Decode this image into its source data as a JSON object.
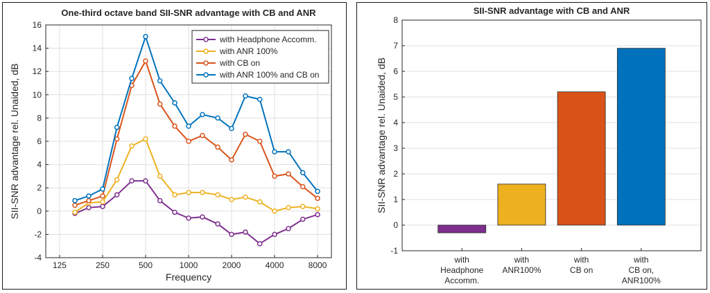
{
  "chart_data": [
    {
      "type": "line",
      "title": "One-third octave band SII-SNR advantage with CB and ANR",
      "xlabel": "Frequency",
      "ylabel": "SII-SNR advantage rel. Unaided, dB",
      "xscale": "log",
      "xlim": [
        100,
        10000
      ],
      "ylim": [
        -4,
        16
      ],
      "xticks": [
        125,
        250,
        500,
        1000,
        2000,
        4000,
        8000
      ],
      "xtick_labels": [
        "125",
        "250",
        "500",
        "1000",
        "2000",
        "4000",
        "8000"
      ],
      "yticks": [
        -4,
        -2,
        0,
        2,
        4,
        6,
        8,
        10,
        12,
        14,
        16
      ],
      "grid": true,
      "legend_position": "top-right",
      "x": [
        160,
        200,
        250,
        315,
        400,
        500,
        630,
        800,
        1000,
        1250,
        1600,
        2000,
        2500,
        3150,
        4000,
        5000,
        6300,
        8000
      ],
      "series": [
        {
          "name": "with Headphone Accomm.",
          "color": "#7e2f8e",
          "values": [
            -0.2,
            0.3,
            0.4,
            1.4,
            2.6,
            2.6,
            0.9,
            -0.1,
            -0.6,
            -0.5,
            -1.1,
            -2.0,
            -1.8,
            -2.8,
            -2.0,
            -1.5,
            -0.7,
            -0.3
          ]
        },
        {
          "name": "with ANR 100%",
          "color": "#edb120",
          "values": [
            -0.1,
            0.7,
            0.8,
            2.7,
            5.6,
            6.2,
            3.0,
            1.4,
            1.6,
            1.6,
            1.4,
            1.0,
            1.2,
            0.8,
            0.0,
            0.3,
            0.4,
            0.2
          ]
        },
        {
          "name": "with CB on",
          "color": "#d95319",
          "values": [
            0.5,
            0.9,
            1.3,
            6.2,
            10.8,
            12.9,
            9.2,
            7.3,
            6.0,
            6.5,
            5.5,
            4.4,
            6.6,
            6.0,
            3.0,
            3.2,
            2.1,
            1.1
          ]
        },
        {
          "name": "with ANR 100% and CB on",
          "color": "#0072bd",
          "values": [
            0.9,
            1.3,
            1.9,
            7.2,
            11.4,
            15.0,
            11.2,
            9.3,
            7.3,
            8.3,
            8.0,
            7.1,
            9.9,
            9.6,
            5.1,
            5.1,
            3.3,
            1.7
          ]
        }
      ]
    },
    {
      "type": "bar",
      "title": "SII-SNR advantage with CB and ANR",
      "xlabel": "",
      "ylabel": "SII-SNR advantage rel. Unaided, dB",
      "ylim": [
        -1,
        8
      ],
      "yticks": [
        -1,
        0,
        1,
        2,
        3,
        4,
        5,
        6,
        7,
        8
      ],
      "grid": true,
      "categories": [
        [
          "with",
          "Headphone",
          "Accomm."
        ],
        [
          "with",
          "ANR100%"
        ],
        [
          "with",
          "CB on"
        ],
        [
          "with",
          "CB on,",
          "ANR100%"
        ]
      ],
      "values": [
        -0.3,
        1.6,
        5.2,
        6.9
      ],
      "colors": [
        "#7e2f8e",
        "#edb120",
        "#d95319",
        "#0072bd"
      ]
    }
  ]
}
